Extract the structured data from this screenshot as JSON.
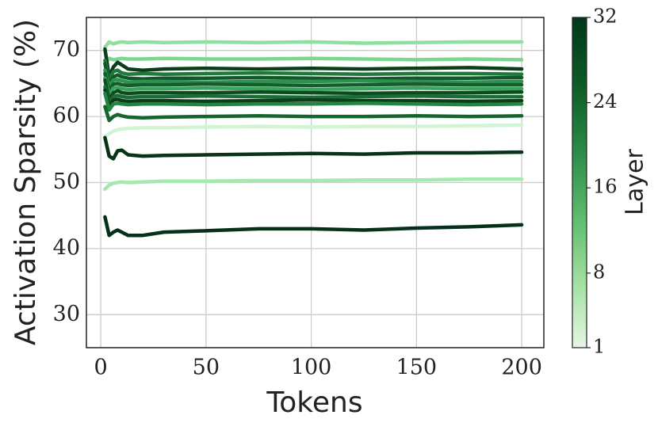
{
  "chart_data": {
    "type": "line",
    "x_label": "Tokens",
    "y_label": "Activation Sparsity (%)",
    "x": [
      2,
      4,
      6,
      8,
      10,
      13,
      20,
      30,
      50,
      75,
      100,
      125,
      150,
      175,
      200
    ],
    "series": [
      {
        "color": "#8fe0a0",
        "values": [
          70.5,
          71.3,
          71.0,
          71.2,
          71.3,
          71.2,
          71.3,
          71.2,
          71.3,
          71.2,
          71.3,
          71.1,
          71.2,
          71.3,
          71.3
        ]
      },
      {
        "color": "#7dd68e",
        "values": [
          68.0,
          68.8,
          68.6,
          68.7,
          68.8,
          68.7,
          68.7,
          68.8,
          68.7,
          68.7,
          68.8,
          68.7,
          68.6,
          68.7,
          68.6
        ]
      },
      {
        "color": "#0a3d1a",
        "values": [
          70.2,
          66.0,
          67.5,
          68.2,
          67.8,
          67.2,
          67.0,
          67.2,
          67.3,
          67.2,
          67.3,
          67.2,
          67.3,
          67.4,
          67.2
        ]
      },
      {
        "color": "#1f7a3a",
        "values": [
          68.5,
          65.5,
          66.8,
          67.0,
          66.6,
          66.4,
          66.5,
          66.4,
          66.5,
          66.6,
          66.5,
          66.4,
          66.5,
          66.5,
          66.4
        ]
      },
      {
        "color": "#0f5a28",
        "values": [
          68.0,
          64.8,
          66.0,
          66.3,
          66.0,
          65.8,
          65.7,
          65.8,
          65.8,
          65.9,
          65.8,
          65.7,
          65.8,
          65.8,
          65.9
        ]
      },
      {
        "color": "#2e9150",
        "values": [
          67.0,
          64.5,
          65.5,
          65.6,
          65.4,
          65.2,
          65.3,
          65.3,
          65.2,
          65.3,
          65.3,
          65.4,
          65.3,
          65.2,
          65.3
        ]
      },
      {
        "color": "#145c2c",
        "values": [
          66.5,
          63.8,
          64.9,
          65.0,
          64.8,
          64.7,
          64.8,
          64.8,
          64.9,
          64.8,
          64.7,
          64.8,
          64.9,
          64.8,
          64.8
        ]
      },
      {
        "color": "#3aa35c",
        "values": [
          65.8,
          63.2,
          64.3,
          64.4,
          64.2,
          64.1,
          64.2,
          64.2,
          64.3,
          64.2,
          64.1,
          64.2,
          64.3,
          64.2,
          64.2
        ]
      },
      {
        "color": "#0c4a20",
        "values": [
          65.5,
          62.5,
          63.6,
          63.9,
          63.6,
          63.5,
          63.6,
          63.6,
          63.6,
          63.7,
          63.6,
          63.5,
          63.6,
          63.6,
          63.7
        ]
      },
      {
        "color": "#1a6e34",
        "values": [
          64.5,
          62.0,
          63.0,
          63.2,
          63.0,
          62.9,
          63.0,
          63.0,
          63.1,
          63.0,
          62.9,
          63.0,
          63.1,
          63.0,
          63.0
        ]
      },
      {
        "color": "#0b3f1b",
        "values": [
          64.0,
          61.5,
          62.5,
          62.6,
          62.4,
          62.3,
          62.4,
          62.4,
          62.3,
          62.4,
          62.5,
          62.4,
          62.4,
          62.3,
          62.4
        ]
      },
      {
        "color": "#248543",
        "values": [
          63.5,
          61.0,
          61.9,
          62.0,
          61.9,
          61.8,
          61.9,
          61.9,
          61.8,
          61.9,
          61.9,
          62.0,
          61.9,
          61.8,
          61.9
        ]
      },
      {
        "color": "#16652f",
        "values": [
          61.5,
          59.4,
          60.0,
          60.3,
          60.1,
          59.9,
          59.8,
          59.9,
          60.0,
          60.1,
          60.0,
          60.0,
          60.1,
          60.0,
          60.1
        ]
      },
      {
        "color": "#d0f5d4",
        "values": [
          57.0,
          57.4,
          57.8,
          58.0,
          58.1,
          58.2,
          58.3,
          58.3,
          58.4,
          58.5,
          58.4,
          58.5,
          58.5,
          58.6,
          58.7
        ]
      },
      {
        "color": "#083318",
        "values": [
          56.8,
          54.0,
          53.6,
          54.8,
          54.9,
          54.2,
          54.0,
          54.1,
          54.2,
          54.3,
          54.4,
          54.3,
          54.5,
          54.5,
          54.6
        ]
      },
      {
        "color": "#a5e8b0",
        "values": [
          49.0,
          49.6,
          49.9,
          50.0,
          50.1,
          50.0,
          50.1,
          50.2,
          50.2,
          50.3,
          50.3,
          50.4,
          50.4,
          50.5,
          50.5
        ]
      },
      {
        "color": "#06301a",
        "values": [
          44.8,
          42.0,
          42.5,
          42.8,
          42.5,
          42.0,
          42.0,
          42.5,
          42.7,
          43.0,
          43.0,
          42.8,
          43.1,
          43.3,
          43.6
        ]
      }
    ],
    "xlim": [
      -6.8,
      210.5
    ],
    "ylim": [
      25,
      75
    ],
    "xticks": [
      0,
      50,
      100,
      150,
      200
    ],
    "yticks": [
      30,
      40,
      50,
      60,
      70
    ],
    "grid": true,
    "colorbar": {
      "label": "Layer",
      "lim": [
        1,
        32
      ],
      "ticks": [
        1,
        8,
        16,
        24,
        32
      ],
      "colors": [
        "#e5f7e3",
        "#a1dfa0",
        "#5cba6e",
        "#2a8a45",
        "#0d5a26",
        "#00381a"
      ]
    }
  }
}
